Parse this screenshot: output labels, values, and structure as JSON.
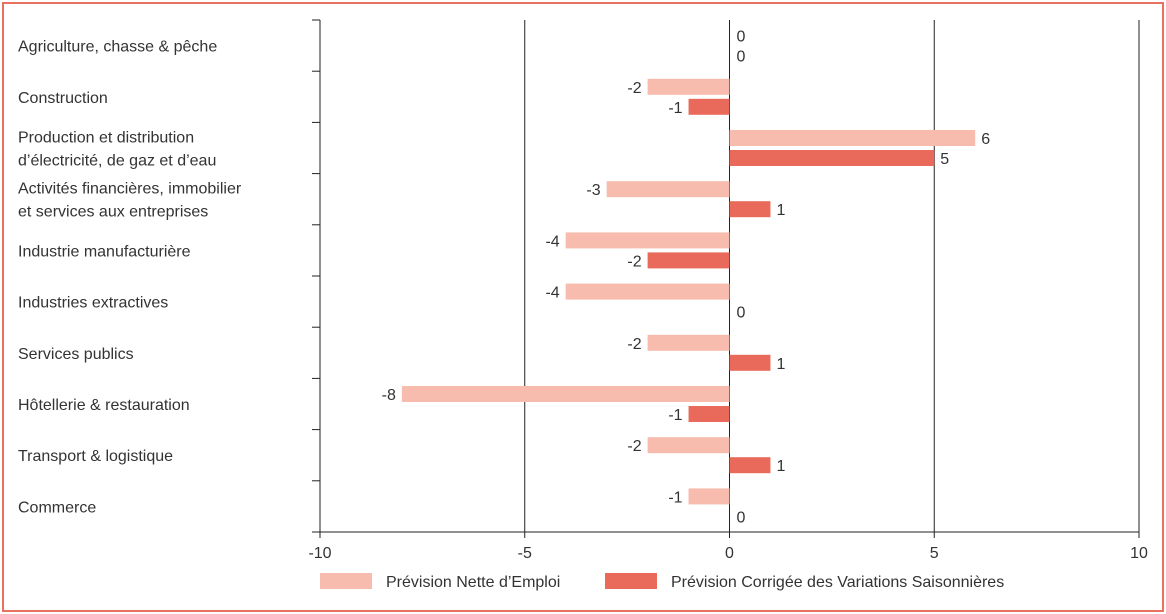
{
  "chart_data": {
    "type": "bar",
    "orientation": "horizontal",
    "categories": [
      [
        "Agriculture, chasse & pêche"
      ],
      [
        "Construction"
      ],
      [
        "Production et distribution",
        "d’électricité, de gaz et d’eau"
      ],
      [
        "Activités financières, immobilier",
        "et services aux entreprises"
      ],
      [
        "Industrie manufacturière"
      ],
      [
        "Industries extractives"
      ],
      [
        "Services publics"
      ],
      [
        "Hôtellerie & restauration"
      ],
      [
        "Transport & logistique"
      ],
      [
        "Commerce"
      ]
    ],
    "series": [
      {
        "name": "Prévision Nette d’Emploi",
        "color": "#f7bcad",
        "values": [
          0,
          -2,
          6,
          -3,
          -4,
          -4,
          -2,
          -8,
          -2,
          -1
        ]
      },
      {
        "name": "Prévision Corrigée des Variations Saisonnières",
        "color": "#e96a5a",
        "values": [
          0,
          -1,
          5,
          1,
          -2,
          0,
          1,
          -1,
          1,
          0
        ]
      }
    ],
    "xlim": [
      -10,
      10
    ],
    "xticks": [
      -10,
      -5,
      0,
      5,
      10
    ],
    "grid": true,
    "legend_position": "bottom",
    "border_color": "#e8725f"
  }
}
